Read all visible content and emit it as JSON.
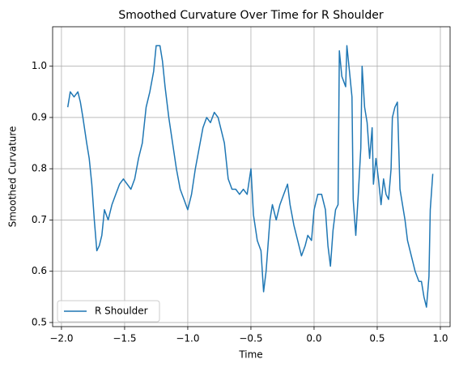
{
  "chart_data": {
    "type": "line",
    "title": "Smoothed Curvature Over Time for R Shoulder",
    "x_label": "Time",
    "y_label": "Smoothed Curvature",
    "x": [
      -1.95,
      -1.93,
      -1.9,
      -1.87,
      -1.85,
      -1.83,
      -1.8,
      -1.78,
      -1.76,
      -1.74,
      -1.72,
      -1.7,
      -1.68,
      -1.66,
      -1.63,
      -1.6,
      -1.57,
      -1.54,
      -1.51,
      -1.48,
      -1.45,
      -1.42,
      -1.39,
      -1.36,
      -1.33,
      -1.3,
      -1.27,
      -1.25,
      -1.22,
      -1.2,
      -1.18,
      -1.15,
      -1.12,
      -1.09,
      -1.06,
      -1.03,
      -1.0,
      -0.97,
      -0.94,
      -0.91,
      -0.88,
      -0.85,
      -0.82,
      -0.79,
      -0.76,
      -0.73,
      -0.71,
      -0.68,
      -0.65,
      -0.62,
      -0.59,
      -0.56,
      -0.53,
      -0.5,
      -0.48,
      -0.45,
      -0.42,
      -0.4,
      -0.38,
      -0.35,
      -0.33,
      -0.3,
      -0.27,
      -0.24,
      -0.21,
      -0.19,
      -0.16,
      -0.13,
      -0.1,
      -0.07,
      -0.05,
      -0.02,
      0.0,
      0.03,
      0.06,
      0.09,
      0.11,
      0.13,
      0.15,
      0.17,
      0.19,
      0.2,
      0.22,
      0.25,
      0.26,
      0.28,
      0.3,
      0.31,
      0.33,
      0.35,
      0.37,
      0.38,
      0.4,
      0.42,
      0.44,
      0.46,
      0.47,
      0.49,
      0.51,
      0.53,
      0.55,
      0.57,
      0.59,
      0.61,
      0.62,
      0.64,
      0.66,
      0.68,
      0.7,
      0.72,
      0.74,
      0.77,
      0.8,
      0.83,
      0.85,
      0.87,
      0.89,
      0.9,
      0.91,
      0.92,
      0.94
    ],
    "series": [
      {
        "name": "R Shoulder",
        "color": "#1f77b4",
        "values": [
          0.92,
          0.95,
          0.94,
          0.95,
          0.93,
          0.9,
          0.85,
          0.82,
          0.77,
          0.7,
          0.64,
          0.65,
          0.67,
          0.72,
          0.7,
          0.73,
          0.75,
          0.77,
          0.78,
          0.77,
          0.76,
          0.78,
          0.82,
          0.85,
          0.92,
          0.95,
          0.99,
          1.04,
          1.04,
          1.01,
          0.96,
          0.9,
          0.85,
          0.8,
          0.76,
          0.74,
          0.72,
          0.75,
          0.8,
          0.84,
          0.88,
          0.9,
          0.89,
          0.91,
          0.9,
          0.87,
          0.85,
          0.78,
          0.76,
          0.76,
          0.75,
          0.76,
          0.75,
          0.8,
          0.71,
          0.66,
          0.64,
          0.56,
          0.6,
          0.7,
          0.73,
          0.7,
          0.73,
          0.75,
          0.77,
          0.73,
          0.69,
          0.66,
          0.63,
          0.65,
          0.67,
          0.66,
          0.72,
          0.75,
          0.75,
          0.72,
          0.65,
          0.61,
          0.68,
          0.72,
          0.73,
          1.03,
          0.98,
          0.96,
          1.04,
          0.99,
          0.94,
          0.74,
          0.67,
          0.75,
          0.84,
          1.0,
          0.92,
          0.89,
          0.82,
          0.88,
          0.77,
          0.82,
          0.78,
          0.73,
          0.78,
          0.75,
          0.74,
          0.8,
          0.9,
          0.92,
          0.93,
          0.76,
          0.73,
          0.7,
          0.66,
          0.63,
          0.6,
          0.58,
          0.58,
          0.55,
          0.53,
          0.56,
          0.59,
          0.72,
          0.79
        ]
      }
    ],
    "xlim": [
      -2.07,
      1.077
    ],
    "ylim": [
      0.492,
      1.077
    ],
    "xticks": [
      {
        "value": -2.0,
        "label": "−2.0"
      },
      {
        "value": -1.5,
        "label": "−1.5"
      },
      {
        "value": -1.0,
        "label": "−1.0"
      },
      {
        "value": -0.5,
        "label": "−0.5"
      },
      {
        "value": 0.0,
        "label": "0.0"
      },
      0.5,
      {
        "value": 1.0,
        "label": "1.0"
      }
    ],
    "yticks": [
      0.5,
      0.6,
      0.7,
      0.8,
      0.9,
      {
        "value": 1.0,
        "label": "1.0"
      }
    ],
    "grid": true,
    "legend": "lower left"
  }
}
